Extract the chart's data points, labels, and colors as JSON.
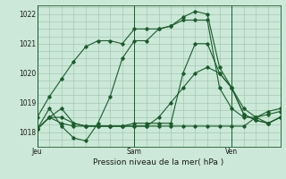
{
  "title": "",
  "xlabel": "Pression niveau de la mer( hPa )",
  "ylabel": "",
  "bg_color": "#cce8d8",
  "grid_color": "#99c4aa",
  "line_color": "#1a5c2a",
  "ylim": [
    1017.5,
    1022.3
  ],
  "yticks": [
    1018,
    1019,
    1020,
    1021,
    1022
  ],
  "xtick_labels": [
    "Jeu",
    "Sam",
    "Ven"
  ],
  "xtick_positions": [
    0,
    8,
    16
  ],
  "vline_positions": [
    0,
    8,
    16
  ],
  "lines": [
    [
      1018.1,
      1018.8,
      1018.2,
      1017.8,
      1017.7,
      1018.3,
      1019.2,
      1020.5,
      1021.1,
      1021.1,
      1021.5,
      1021.6,
      1021.9,
      1022.1,
      1022.0,
      1020.2,
      1019.5,
      1018.6,
      1018.4,
      1018.3,
      1018.5
    ],
    [
      1018.1,
      1018.5,
      1018.8,
      1018.3,
      1018.2,
      1018.2,
      1018.2,
      1018.2,
      1018.3,
      1018.3,
      1018.3,
      1018.3,
      1020.0,
      1021.0,
      1021.0,
      1020.0,
      1019.5,
      1018.6,
      1018.4,
      1018.3,
      1018.5
    ],
    [
      1018.1,
      1018.5,
      1018.5,
      1018.3,
      1018.2,
      1018.2,
      1018.2,
      1018.2,
      1018.2,
      1018.2,
      1018.5,
      1019.0,
      1019.5,
      1020.0,
      1020.2,
      1020.0,
      1019.5,
      1018.8,
      1018.5,
      1018.3,
      1018.5
    ],
    [
      1018.5,
      1019.2,
      1019.8,
      1020.4,
      1020.9,
      1021.1,
      1021.1,
      1021.0,
      1021.5,
      1021.5,
      1021.5,
      1021.6,
      1021.8,
      1021.8,
      1021.8,
      1019.5,
      1018.8,
      1018.5,
      1018.5,
      1018.6,
      1018.7
    ],
    [
      1018.1,
      1018.5,
      1018.3,
      1018.2,
      1018.2,
      1018.2,
      1018.2,
      1018.2,
      1018.2,
      1018.2,
      1018.2,
      1018.2,
      1018.2,
      1018.2,
      1018.2,
      1018.2,
      1018.2,
      1018.2,
      1018.5,
      1018.7,
      1018.8
    ]
  ],
  "marker": "D",
  "marker_size": 1.8,
  "line_width": 0.8,
  "tick_fontsize": 5.5,
  "xlabel_fontsize": 6.5
}
